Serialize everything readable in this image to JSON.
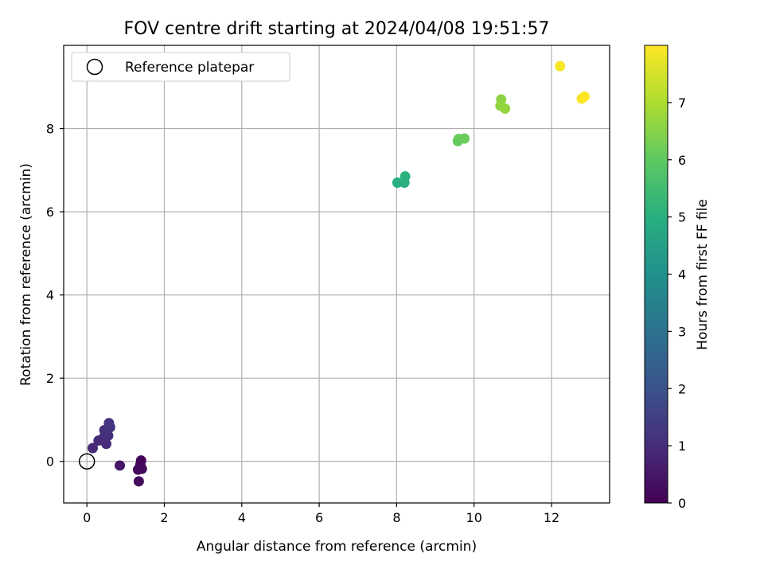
{
  "chart_data": {
    "type": "scatter",
    "title": "FOV centre drift starting at 2024/04/08 19:51:57",
    "xlabel": "Angular distance from reference (arcmin)",
    "ylabel": "Rotation from reference (arcmin)",
    "xlim": [
      -0.6,
      13.5
    ],
    "ylim": [
      -1.0,
      10.0
    ],
    "xticks": [
      0,
      2,
      4,
      6,
      8,
      10,
      12
    ],
    "yticks": [
      0,
      2,
      4,
      6,
      8
    ],
    "grid": true,
    "legend": {
      "position": "top-left",
      "entries": [
        "Reference platepar"
      ]
    },
    "reference_point": {
      "x": 0,
      "y": 0
    },
    "colorbar": {
      "label": "Hours from first FF file",
      "range": [
        0,
        8
      ],
      "ticks": [
        0,
        1,
        2,
        3,
        4,
        5,
        6,
        7
      ],
      "colormap": "viridis"
    },
    "points": [
      {
        "x": 1.4,
        "y": 0.02,
        "c": 0.05
      },
      {
        "x": 1.38,
        "y": -0.08,
        "c": 0.1
      },
      {
        "x": 1.32,
        "y": -0.2,
        "c": 0.15
      },
      {
        "x": 1.42,
        "y": -0.18,
        "c": 0.2
      },
      {
        "x": 1.34,
        "y": -0.48,
        "c": 0.25
      },
      {
        "x": 0.85,
        "y": -0.1,
        "c": 0.5
      },
      {
        "x": 0.15,
        "y": 0.32,
        "c": 0.9
      },
      {
        "x": 0.3,
        "y": 0.5,
        "c": 0.95
      },
      {
        "x": 0.45,
        "y": 0.6,
        "c": 1.0
      },
      {
        "x": 0.5,
        "y": 0.42,
        "c": 1.0
      },
      {
        "x": 0.55,
        "y": 0.62,
        "c": 1.05
      },
      {
        "x": 0.45,
        "y": 0.75,
        "c": 1.1
      },
      {
        "x": 0.6,
        "y": 0.82,
        "c": 1.15
      },
      {
        "x": 0.57,
        "y": 0.92,
        "c": 1.2
      },
      {
        "x": 8.02,
        "y": 6.7,
        "c": 5.0
      },
      {
        "x": 8.2,
        "y": 6.7,
        "c": 5.05
      },
      {
        "x": 8.22,
        "y": 6.85,
        "c": 5.1
      },
      {
        "x": 9.58,
        "y": 7.7,
        "c": 6.05
      },
      {
        "x": 9.6,
        "y": 7.75,
        "c": 6.1
      },
      {
        "x": 9.75,
        "y": 7.76,
        "c": 6.15
      },
      {
        "x": 10.7,
        "y": 8.7,
        "c": 6.6
      },
      {
        "x": 10.68,
        "y": 8.55,
        "c": 6.65
      },
      {
        "x": 10.8,
        "y": 8.48,
        "c": 6.7
      },
      {
        "x": 12.22,
        "y": 9.5,
        "c": 7.9
      },
      {
        "x": 12.78,
        "y": 8.72,
        "c": 7.95
      },
      {
        "x": 12.85,
        "y": 8.77,
        "c": 8.0
      }
    ]
  }
}
